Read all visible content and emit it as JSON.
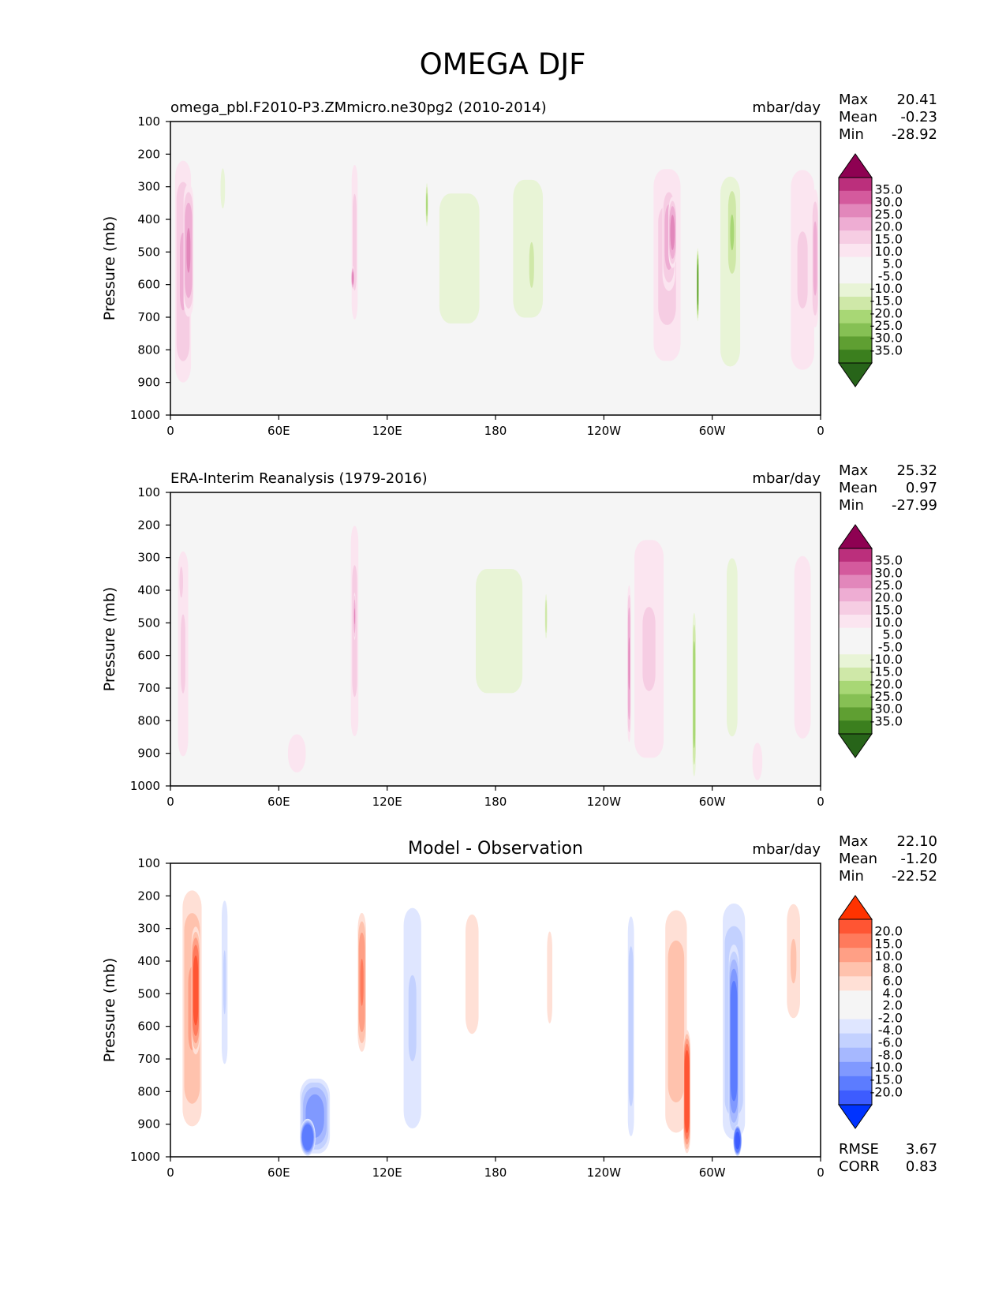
{
  "figure_title": "OMEGA DJF",
  "colors": {
    "background": "#f5f5f5",
    "frame": "#000000",
    "pos_ramp": [
      "#fbe5f0",
      "#f6cde3",
      "#eeadd3",
      "#e287bb",
      "#d45a9d",
      "#bb2f7c",
      "#8e0152"
    ],
    "neg_ramp": [
      "#e8f4d6",
      "#cfe8a8",
      "#a8d775",
      "#86c054",
      "#5f9f32",
      "#3b7f1e",
      "#276419"
    ],
    "diff_pos_ramp": [
      "#ffe0d6",
      "#ffc2ad",
      "#ff9f85",
      "#ff7a5c",
      "#ff5533",
      "#ff3300"
    ],
    "diff_neg_ramp": [
      "#dfe6ff",
      "#c3d1ff",
      "#a6b8ff",
      "#8099ff",
      "#5c7cff",
      "#3d5cff",
      "#0033ff"
    ]
  },
  "chart_data": [
    {
      "type": "contour",
      "name": "model",
      "title_left": "omega_pbl.F2010-P3.ZMmicro.ne30pg2 (2010-2014)",
      "title_center": "",
      "units": "mbar/day",
      "ylabel": "Pressure (mb)",
      "y_ticks": [
        "100",
        "200",
        "300",
        "400",
        "500",
        "600",
        "700",
        "800",
        "900",
        "1000"
      ],
      "ylim": [
        100,
        1000
      ],
      "x_ticks": [
        "0",
        "60E",
        "120E",
        "180",
        "120W",
        "60W",
        "0"
      ],
      "x_tick_values": [
        0,
        60,
        120,
        180,
        240,
        300,
        360
      ],
      "xlim": [
        0,
        360
      ],
      "stats": [
        {
          "label": "Max",
          "value": "20.41"
        },
        {
          "label": "Mean",
          "value": "-0.23"
        },
        {
          "label": "Min",
          "value": "-28.92"
        }
      ],
      "colorbar_levels": [
        "35.0",
        "30.0",
        "25.0",
        "20.0",
        "15.0",
        "10.0",
        "5.0",
        "-5.0",
        "-10.0",
        "-15.0",
        "-20.0",
        "-25.0",
        "-30.0",
        "-35.0"
      ],
      "features": [
        {
          "lon": 7,
          "p_top": 170,
          "p_bot": 950,
          "width": 10,
          "value": 15
        },
        {
          "lon": 10,
          "p_top": 270,
          "p_bot": 720,
          "width": 6,
          "value": 20
        },
        {
          "lon": 29,
          "p_top": 200,
          "p_bot": 410,
          "width": 4,
          "value": -6
        },
        {
          "lon": 102,
          "p_top": 180,
          "p_bot": 760,
          "width": 4,
          "value": 11
        },
        {
          "lon": 101,
          "p_top": 540,
          "p_bot": 620,
          "width": 2,
          "value": 22
        },
        {
          "lon": 160,
          "p_top": 180,
          "p_bot": 860,
          "width": 36,
          "value": -6
        },
        {
          "lon": 142,
          "p_top": 280,
          "p_bot": 430,
          "width": 1.5,
          "value": -16
        },
        {
          "lon": 198,
          "p_top": 200,
          "p_bot": 780,
          "width": 22,
          "value": -8
        },
        {
          "lon": 200,
          "p_top": 430,
          "p_bot": 650,
          "width": 4,
          "value": -13
        },
        {
          "lon": 275,
          "p_top": 180,
          "p_bot": 900,
          "width": 18,
          "value": 11
        },
        {
          "lon": 276,
          "p_top": 270,
          "p_bot": 640,
          "width": 8,
          "value": 17
        },
        {
          "lon": 278,
          "p_top": 320,
          "p_bot": 560,
          "width": 5,
          "value": 21
        },
        {
          "lon": 292,
          "p_top": 480,
          "p_bot": 720,
          "width": 1.2,
          "value": -28
        },
        {
          "lon": 310,
          "p_top": 180,
          "p_bot": 940,
          "width": 14,
          "value": -9
        },
        {
          "lon": 311,
          "p_top": 260,
          "p_bot": 620,
          "width": 6,
          "value": -15
        },
        {
          "lon": 350,
          "p_top": 170,
          "p_bot": 940,
          "width": 16,
          "value": 10
        },
        {
          "lon": 357,
          "p_top": 280,
          "p_bot": 760,
          "width": 4,
          "value": 16
        }
      ]
    },
    {
      "type": "contour",
      "name": "observation",
      "title_left": "ERA-Interim Reanalysis (1979-2016)",
      "title_center": "",
      "units": "mbar/day",
      "ylabel": "Pressure (mb)",
      "y_ticks": [
        "100",
        "200",
        "300",
        "400",
        "500",
        "600",
        "700",
        "800",
        "900",
        "1000"
      ],
      "ylim": [
        100,
        1000
      ],
      "x_ticks": [
        "0",
        "60E",
        "120E",
        "180",
        "120W",
        "60W",
        "0"
      ],
      "x_tick_values": [
        0,
        60,
        120,
        180,
        240,
        300,
        360
      ],
      "xlim": [
        0,
        360
      ],
      "stats": [
        {
          "label": "Max",
          "value": "25.32"
        },
        {
          "label": "Mean",
          "value": "0.97"
        },
        {
          "label": "Min",
          "value": "-27.99"
        }
      ],
      "colorbar_levels": [
        "35.0",
        "30.0",
        "25.0",
        "20.0",
        "15.0",
        "10.0",
        "5.0",
        "-5.0",
        "-10.0",
        "-15.0",
        "-20.0",
        "-25.0",
        "-30.0",
        "-35.0"
      ],
      "features": [
        {
          "lon": 7,
          "p_top": 200,
          "p_bot": 990,
          "width": 7,
          "value": 10
        },
        {
          "lon": 6,
          "p_top": 300,
          "p_bot": 450,
          "width": 3,
          "value": 13
        },
        {
          "lon": 102,
          "p_top": 130,
          "p_bot": 920,
          "width": 5,
          "value": 11
        },
        {
          "lon": 102,
          "p_top": 400,
          "p_bot": 560,
          "width": 1.5,
          "value": 20
        },
        {
          "lon": 70,
          "p_top": 800,
          "p_bot": 1000,
          "width": 16,
          "value": 6
        },
        {
          "lon": 182,
          "p_top": 200,
          "p_bot": 850,
          "width": 42,
          "value": -6
        },
        {
          "lon": 208,
          "p_top": 400,
          "p_bot": 560,
          "width": 1.5,
          "value": -13
        },
        {
          "lon": 265,
          "p_top": 160,
          "p_bot": 1000,
          "width": 20,
          "value": 10
        },
        {
          "lon": 254,
          "p_top": 360,
          "p_bot": 890,
          "width": 2,
          "value": 20
        },
        {
          "lon": 290,
          "p_top": 440,
          "p_bot": 1000,
          "width": 2,
          "value": -18
        },
        {
          "lon": 311,
          "p_top": 200,
          "p_bot": 950,
          "width": 8,
          "value": -8
        },
        {
          "lon": 350,
          "p_top": 160,
          "p_bot": 990,
          "width": 13,
          "value": 7
        },
        {
          "lon": 325,
          "p_top": 850,
          "p_bot": 1000,
          "width": 7,
          "value": 9
        }
      ]
    },
    {
      "type": "contour",
      "name": "difference",
      "title_left": "",
      "title_center": "Model - Observation",
      "units": "mbar/day",
      "ylabel": "Pressure (mb)",
      "y_ticks": [
        "100",
        "200",
        "300",
        "400",
        "500",
        "600",
        "700",
        "800",
        "900",
        "1000"
      ],
      "ylim": [
        100,
        1000
      ],
      "x_ticks": [
        "0",
        "60E",
        "120E",
        "180",
        "120W",
        "60W",
        "0"
      ],
      "x_tick_values": [
        0,
        60,
        120,
        180,
        240,
        300,
        360
      ],
      "xlim": [
        0,
        360
      ],
      "stats": [
        {
          "label": "Max",
          "value": "22.10"
        },
        {
          "label": "Mean",
          "value": "-1.20"
        },
        {
          "label": "Min",
          "value": "-22.52"
        }
      ],
      "stats_bottom": [
        {
          "label": "RMSE",
          "value": "3.67"
        },
        {
          "label": "CORR",
          "value": "0.83"
        }
      ],
      "colorbar_levels": [
        "20.0",
        "15.0",
        "10.0",
        "8.0",
        "6.0",
        "4.0",
        "2.0",
        "-2.0",
        "-4.0",
        "-6.0",
        "-8.0",
        "-10.0",
        "-15.0",
        "-20.0"
      ],
      "features": [
        {
          "lon": 12,
          "p_top": 130,
          "p_bot": 960,
          "width": 12,
          "value": 6
        },
        {
          "lon": 14,
          "p_top": 280,
          "p_bot": 700,
          "width": 5,
          "value": 11
        },
        {
          "lon": 30,
          "p_top": 150,
          "p_bot": 780,
          "width": 4,
          "value": -4
        },
        {
          "lon": 80,
          "p_top": 750,
          "p_bot": 1000,
          "width": 18,
          "value": -9
        },
        {
          "lon": 76,
          "p_top": 880,
          "p_bot": 1000,
          "width": 9,
          "value": -14
        },
        {
          "lon": 106,
          "p_top": 230,
          "p_bot": 700,
          "width": 5,
          "value": 8
        },
        {
          "lon": 134,
          "p_top": 150,
          "p_bot": 1000,
          "width": 12,
          "value": -4
        },
        {
          "lon": 167,
          "p_top": 180,
          "p_bot": 700,
          "width": 10,
          "value": 3
        },
        {
          "lon": 210,
          "p_top": 250,
          "p_bot": 650,
          "width": 4,
          "value": 3
        },
        {
          "lon": 255,
          "p_top": 200,
          "p_bot": 1000,
          "width": 4,
          "value": -5
        },
        {
          "lon": 280,
          "p_top": 180,
          "p_bot": 990,
          "width": 14,
          "value": 5
        },
        {
          "lon": 286,
          "p_top": 600,
          "p_bot": 1000,
          "width": 4,
          "value": 13
        },
        {
          "lon": 312,
          "p_top": 170,
          "p_bot": 1000,
          "width": 14,
          "value": -6
        },
        {
          "lon": 312,
          "p_top": 330,
          "p_bot": 960,
          "width": 6,
          "value": -12
        },
        {
          "lon": 314,
          "p_top": 900,
          "p_bot": 1000,
          "width": 5,
          "value": -17
        },
        {
          "lon": 345,
          "p_top": 180,
          "p_bot": 620,
          "width": 9,
          "value": 4
        }
      ]
    }
  ]
}
